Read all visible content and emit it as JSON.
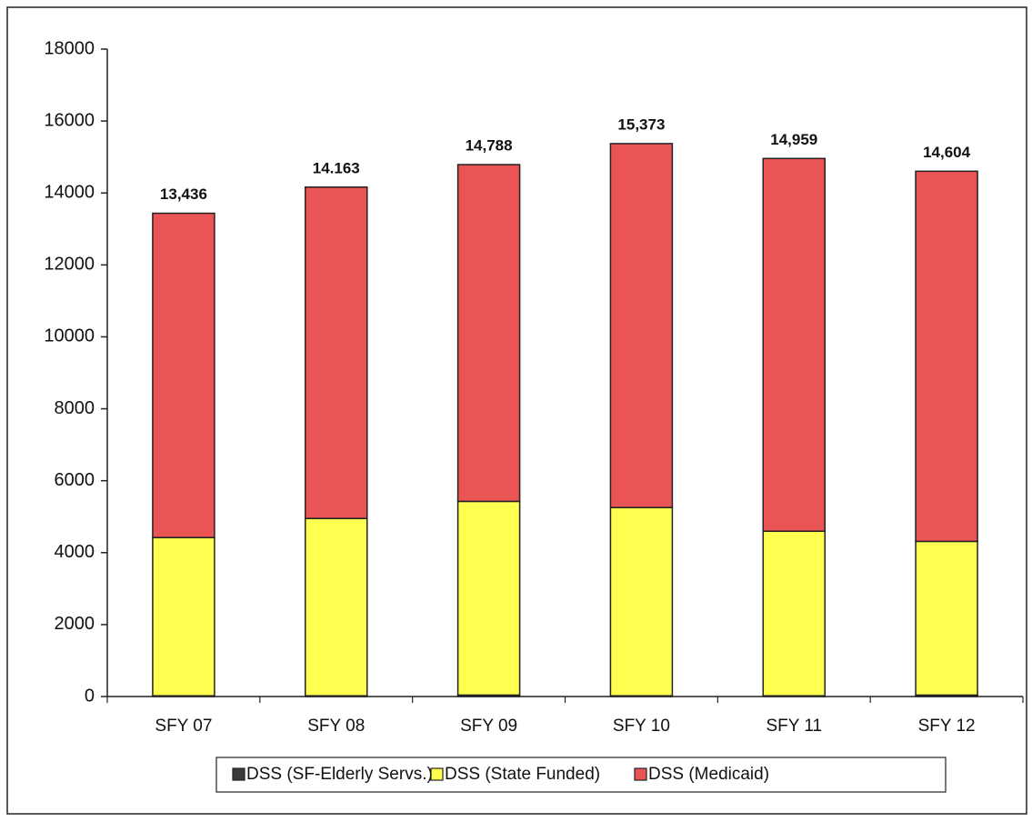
{
  "chart_data": {
    "type": "stacked-bar",
    "categories": [
      "SFY 07",
      "SFY 08",
      "SFY 09",
      "SFY 10",
      "SFY 11",
      "SFY 12"
    ],
    "series": [
      {
        "name": "DSS (SF-Elderly Servs.)",
        "color": "#3a3a3a",
        "values": [
          20,
          20,
          40,
          20,
          20,
          40
        ]
      },
      {
        "name": "DSS (State Funded)",
        "color": "#ffff4f",
        "values": [
          4400,
          4930,
          5385,
          5234,
          4577,
          4273
        ]
      },
      {
        "name": "DSS (Medicaid)",
        "color": "#ea5455",
        "values": [
          9016,
          9213,
          9363,
          10119,
          10362,
          10291
        ]
      }
    ],
    "totals": {
      "values": [
        13436,
        14163,
        14788,
        15373,
        14959,
        14604
      ],
      "value_labels": [
        "13,436",
        "14.163",
        "14,788",
        "15,373",
        "14,959",
        "14,604"
      ]
    },
    "ylim": [
      0,
      18000
    ],
    "yticks": [
      0,
      2000,
      4000,
      6000,
      8000,
      10000,
      12000,
      14000,
      16000,
      18000
    ]
  }
}
